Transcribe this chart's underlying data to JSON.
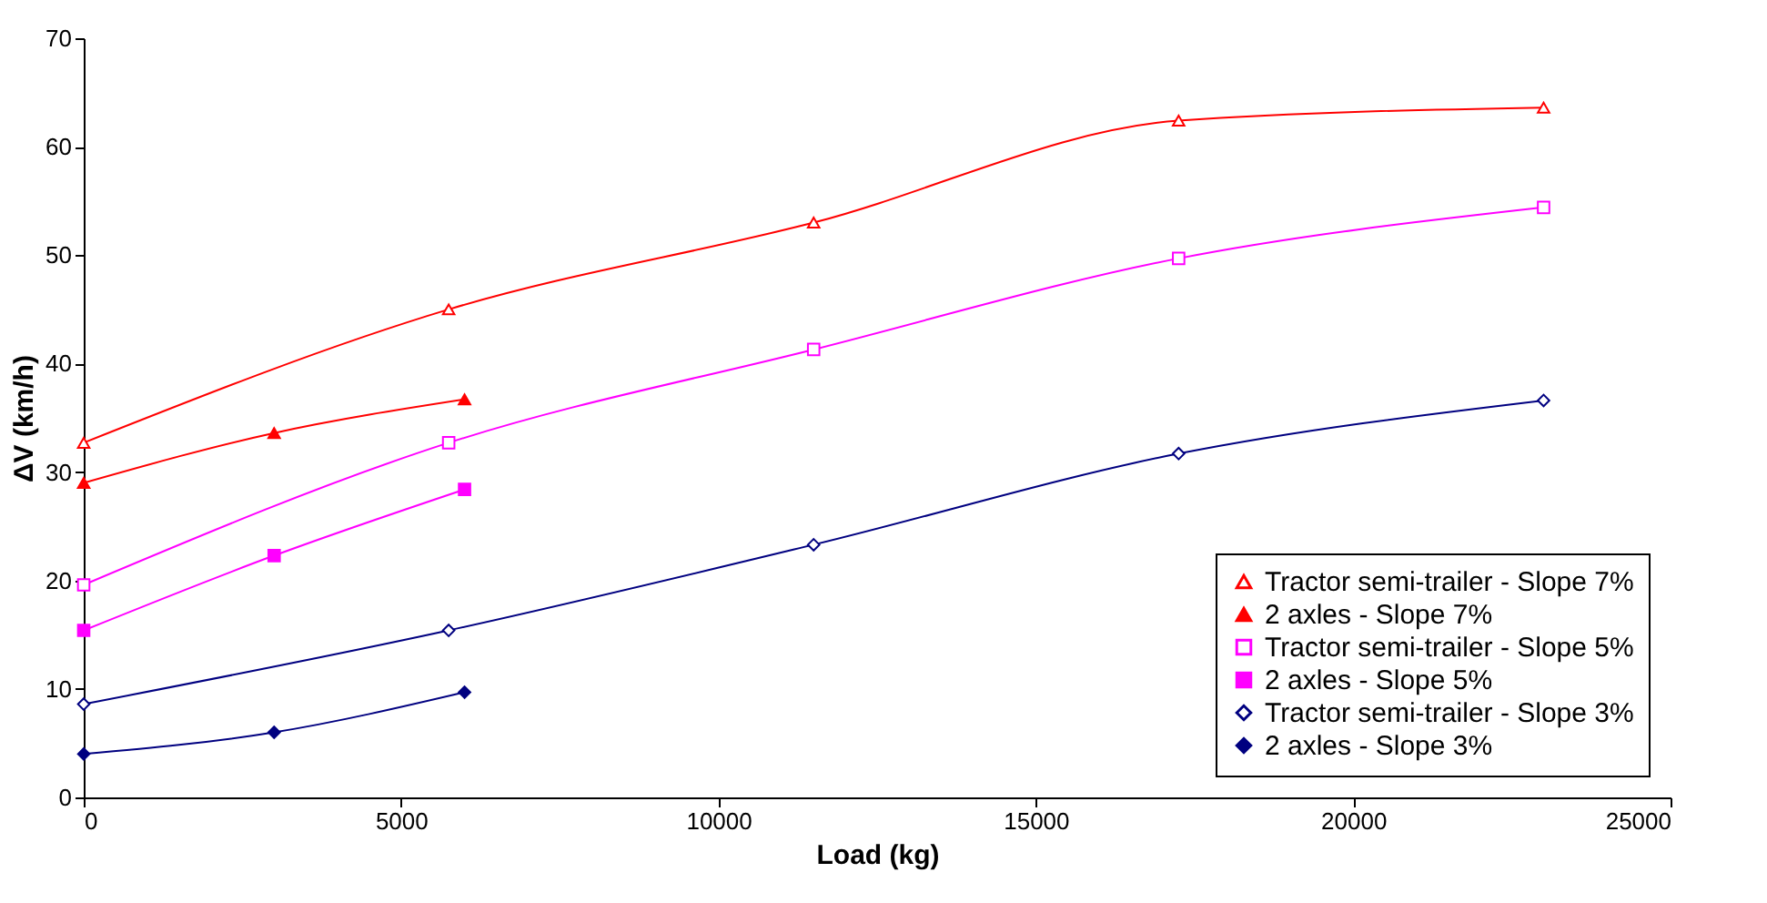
{
  "chart_data": {
    "type": "line",
    "xlabel": "Load (kg)",
    "ylabel": "ΔV (km/h)",
    "xlim": [
      0,
      25000
    ],
    "xticks": [
      0,
      5000,
      10000,
      15000,
      20000,
      25000
    ],
    "ylim": [
      0,
      70
    ],
    "yticks": [
      0,
      10,
      20,
      30,
      40,
      50,
      60,
      70
    ],
    "grid": false,
    "legend": "bottom right",
    "line_style": "solid",
    "series": [
      {
        "name": "Tractor semi-trailer - Slope 7%",
        "color": "#ff0000",
        "marker": "triangle",
        "x": [
          0,
          5750,
          11500,
          17250,
          23000
        ],
        "values": [
          32.7,
          45.0,
          53.0,
          62.4,
          63.6
        ]
      },
      {
        "name": "2 axles - Slope 7%",
        "color": "#ff0000",
        "marker": "triangle",
        "x": [
          0,
          3000,
          6000
        ],
        "values": [
          29.0,
          33.6,
          36.7
        ]
      },
      {
        "name": "Tractor semi-trailer - Slope 5%",
        "color": "#ff00ff",
        "marker": "square",
        "x": [
          0,
          5750,
          11500,
          17250,
          23000
        ],
        "values": [
          19.6,
          32.7,
          41.3,
          49.7,
          54.4
        ]
      },
      {
        "name": "2 axles - Slope 5%",
        "color": "#ff00ff",
        "marker": "square",
        "x": [
          0,
          3000,
          6000
        ],
        "values": [
          15.4,
          22.3,
          28.4
        ]
      },
      {
        "name": "Tractor semi-trailer - Slope 3%",
        "color": "#000080",
        "marker": "diamond",
        "x": [
          0,
          5750,
          11500,
          17250,
          23000
        ],
        "values": [
          8.6,
          15.4,
          23.3,
          31.7,
          36.6
        ]
      },
      {
        "name": "2 axles - Slope 3%",
        "color": "#000080",
        "marker": "diamond",
        "x": [
          0,
          3000,
          6000
        ],
        "values": [
          4.0,
          6.0,
          9.7
        ]
      }
    ]
  }
}
